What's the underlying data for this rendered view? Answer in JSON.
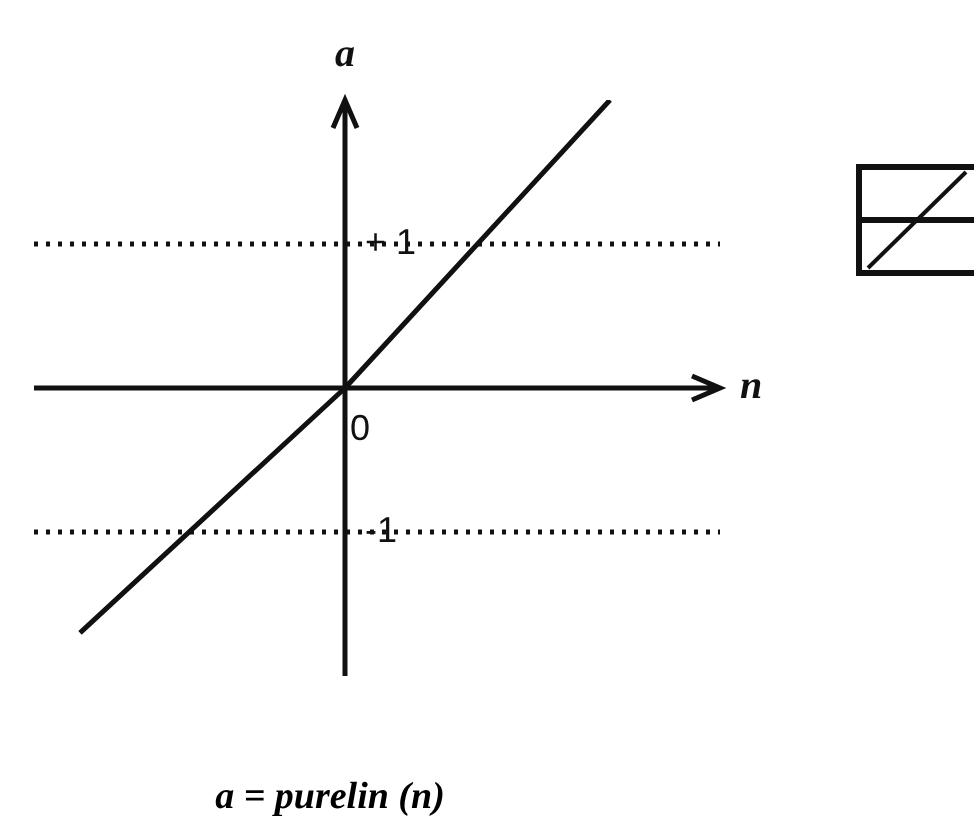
{
  "chart_data": {
    "type": "line",
    "xlabel": "n",
    "ylabel": "a",
    "categories": [
      null,
      "0",
      null
    ],
    "ylim": [
      -2,
      2
    ],
    "yticks": [
      {
        "value": 1,
        "label": "+ 1"
      },
      {
        "value": -1,
        "label": "-1"
      }
    ],
    "series": [
      {
        "color": "#111111",
        "values": [
          -1.7,
          0,
          2.0
        ]
      }
    ],
    "ref_lines": [
      {
        "axis": "y",
        "value": 1,
        "color": "#111111",
        "line_style": "dotted"
      },
      {
        "axis": "y",
        "value": -1,
        "color": "#111111",
        "line_style": "dotted"
      }
    ],
    "annotations": [
      "a = purelin (n)"
    ],
    "grid": false,
    "legend": false,
    "marker": "none",
    "line_style": "solid"
  }
}
